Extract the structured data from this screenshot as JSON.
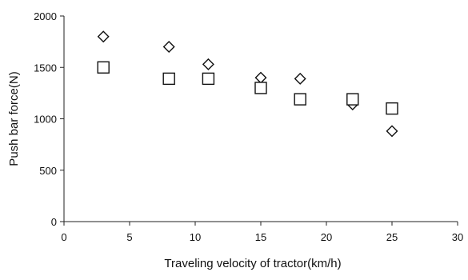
{
  "chart_data": {
    "type": "scatter",
    "title": "",
    "xlabel": "Traveling velocity of tractor(km/h)",
    "ylabel": "Push bar force(N)",
    "xlim": [
      0,
      30
    ],
    "ylim": [
      0,
      2000
    ],
    "xticks": [
      0,
      5,
      10,
      15,
      20,
      25,
      30
    ],
    "yticks": [
      0,
      500,
      1000,
      1500,
      2000
    ],
    "grid": false,
    "legend": "none",
    "series": [
      {
        "marker": "diamond",
        "x": [
          3,
          8,
          11,
          15,
          18,
          22,
          25
        ],
        "y": [
          1800,
          1700,
          1530,
          1400,
          1390,
          1140,
          880
        ]
      },
      {
        "marker": "square",
        "x": [
          3,
          8,
          11,
          15,
          18,
          22,
          25
        ],
        "y": [
          1500,
          1390,
          1390,
          1300,
          1190,
          1190,
          1100
        ]
      }
    ]
  }
}
